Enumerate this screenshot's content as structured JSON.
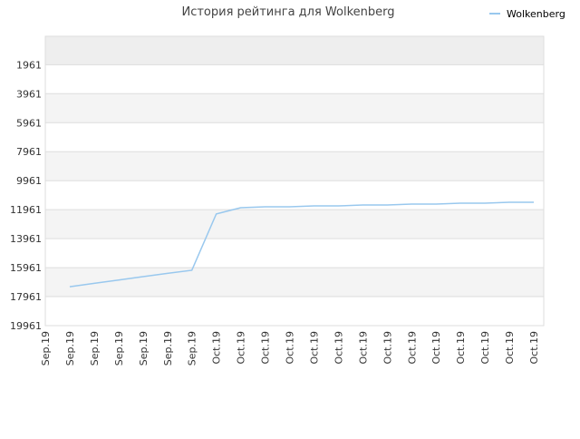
{
  "chart_data": {
    "type": "line",
    "title": "История рейтинга для Wolkenberg",
    "categories": [
      "Sep.19",
      "Sep.19",
      "Sep.19",
      "Sep.19",
      "Sep.19",
      "Sep.19",
      "Sep.19",
      "Oct.19",
      "Oct.19",
      "Oct.19",
      "Oct.19",
      "Oct.19",
      "Oct.19",
      "Oct.19",
      "Oct.19",
      "Oct.19",
      "Oct.19",
      "Oct.19",
      "Oct.19",
      "Oct.19",
      "Oct.19"
    ],
    "series": [
      {
        "name": "Wolkenberg",
        "color": "#99c8ee",
        "values": [
          null,
          17278,
          17045,
          16814,
          16583,
          16352,
          16140,
          12256,
          11827,
          11765,
          11765,
          11702,
          11702,
          11640,
          11640,
          11577,
          11577,
          11515,
          11515,
          11452,
          11452
        ]
      }
    ],
    "ylim": [
      19961,
      0
    ],
    "yticks": [
      1961,
      3961,
      5961,
      7961,
      9961,
      11961,
      13961,
      15961,
      17961,
      19961
    ],
    "grid": true,
    "legend": "top-right"
  }
}
